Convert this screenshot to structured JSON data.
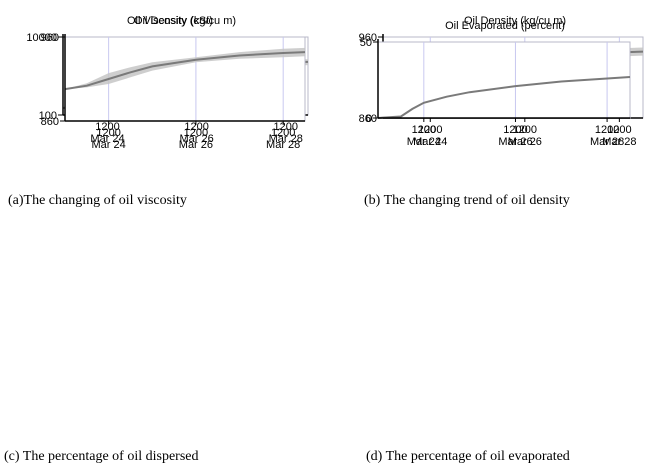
{
  "chart_data": [
    {
      "type": "area",
      "title": "Oil Viscosity (cSt)",
      "caption": "(a)The changing of oil viscosity",
      "y_scale": "log",
      "ylim": [
        100,
        10000
      ],
      "y_tick_labels": [
        "10000",
        "100"
      ],
      "x_ticks": [
        {
          "time": "1200",
          "date": "Mar 24"
        },
        {
          "time": "1200",
          "date": "Mar 26"
        },
        {
          "time": "1200",
          "date": "Mar 28"
        }
      ],
      "grid": "vertical",
      "series": [
        {
          "values": [
            {
              "x": "Mar 23 12:00",
              "y": 150,
              "lo": 150,
              "hi": 150
            },
            {
              "x": "Mar 24 00:00",
              "y": 200,
              "lo": 180,
              "hi": 230
            },
            {
              "x": "Mar 24 06:00",
              "y": 400,
              "lo": 300,
              "hi": 550
            },
            {
              "x": "Mar 24 12:00",
              "y": 700,
              "lo": 500,
              "hi": 950
            },
            {
              "x": "Mar 25 00:00",
              "y": 1000,
              "lo": 800,
              "hi": 1250
            },
            {
              "x": "Mar 25 12:00",
              "y": 1150,
              "lo": 1000,
              "hi": 1350
            },
            {
              "x": "Mar 26 12:00",
              "y": 1300,
              "lo": 1250,
              "hi": 1400
            },
            {
              "x": "Mar 27 12:00",
              "y": 1800,
              "lo": 1500,
              "hi": 2100
            },
            {
              "x": "Mar 28 12:00",
              "y": 2200,
              "lo": 1800,
              "hi": 2600
            },
            {
              "x": "Mar 29 00:00",
              "y": 2300,
              "lo": 1900,
              "hi": 2700
            }
          ]
        }
      ]
    },
    {
      "type": "area",
      "title": "Oil Density (kg/cu m)",
      "caption": "(b) The changing trend of oil density",
      "ylim": [
        860,
        960
      ],
      "y_tick_labels": [
        "960",
        "860"
      ],
      "x_ticks": [
        {
          "time": "1200",
          "date": "Mar 24"
        },
        {
          "time": "1200",
          "date": "Mar 26"
        },
        {
          "time": "1200",
          "date": "Mar 28"
        }
      ],
      "grid": "vertical",
      "series": [
        {
          "values": [
            {
              "x": "Mar 23 12:00",
              "y": 898,
              "lo": 898,
              "hi": 898
            },
            {
              "x": "Mar 24 00:00",
              "y": 902,
              "lo": 900,
              "hi": 905
            },
            {
              "x": "Mar 24 12:00",
              "y": 910,
              "lo": 904,
              "hi": 917
            },
            {
              "x": "Mar 25 00:00",
              "y": 918,
              "lo": 912,
              "hi": 924
            },
            {
              "x": "Mar 25 12:00",
              "y": 925,
              "lo": 920,
              "hi": 930
            },
            {
              "x": "Mar 26 12:00",
              "y": 933,
              "lo": 930,
              "hi": 936
            },
            {
              "x": "Mar 27 12:00",
              "y": 938,
              "lo": 934,
              "hi": 942
            },
            {
              "x": "Mar 28 12:00",
              "y": 941,
              "lo": 936,
              "hi": 946
            },
            {
              "x": "Mar 29 00:00",
              "y": 942,
              "lo": 937,
              "hi": 947
            }
          ]
        }
      ]
    },
    {
      "type": "area",
      "title": "Oil Density (kg/cu m)",
      "caption": "(c) The percentage of oil dispersed",
      "ylim": [
        860,
        960
      ],
      "y_tick_labels": [
        "960",
        "860"
      ],
      "x_ticks": [
        {
          "time": "1200",
          "date": "Mar 24"
        },
        {
          "time": "1200",
          "date": "Mar 26"
        },
        {
          "time": "1200",
          "date": "Mar 28"
        }
      ],
      "grid": "vertical",
      "series": [
        {
          "values": [
            {
              "x": "Mar 23 12:00",
              "y": 898,
              "lo": 898,
              "hi": 898
            },
            {
              "x": "Mar 24 00:00",
              "y": 902,
              "lo": 900,
              "hi": 905
            },
            {
              "x": "Mar 24 12:00",
              "y": 910,
              "lo": 904,
              "hi": 917
            },
            {
              "x": "Mar 25 00:00",
              "y": 918,
              "lo": 912,
              "hi": 924
            },
            {
              "x": "Mar 25 12:00",
              "y": 925,
              "lo": 920,
              "hi": 930
            },
            {
              "x": "Mar 26 12:00",
              "y": 933,
              "lo": 930,
              "hi": 936
            },
            {
              "x": "Mar 27 12:00",
              "y": 938,
              "lo": 934,
              "hi": 942
            },
            {
              "x": "Mar 28 12:00",
              "y": 941,
              "lo": 936,
              "hi": 946
            },
            {
              "x": "Mar 29 00:00",
              "y": 942,
              "lo": 937,
              "hi": 947
            }
          ]
        }
      ]
    },
    {
      "type": "line",
      "title": "Oil Evaporated (percent)",
      "caption": "(d) The percentage of oil evaporated",
      "ylim": [
        0,
        50
      ],
      "y_tick_labels": [
        "50",
        "0"
      ],
      "x_ticks": [
        {
          "time": "1200",
          "date": "Mar 24"
        },
        {
          "time": "1200",
          "date": "Mar 26"
        },
        {
          "time": "1200",
          "date": "Mar 28"
        }
      ],
      "grid": "vertical",
      "series": [
        {
          "values": [
            {
              "x": "Mar 23 12:00",
              "y": 0
            },
            {
              "x": "Mar 24 00:00",
              "y": 1
            },
            {
              "x": "Mar 24 06:00",
              "y": 6
            },
            {
              "x": "Mar 24 12:00",
              "y": 10
            },
            {
              "x": "Mar 25 00:00",
              "y": 14
            },
            {
              "x": "Mar 25 12:00",
              "y": 17
            },
            {
              "x": "Mar 26 12:00",
              "y": 21
            },
            {
              "x": "Mar 27 12:00",
              "y": 24
            },
            {
              "x": "Mar 28 12:00",
              "y": 26
            },
            {
              "x": "Mar 29 00:00",
              "y": 27
            }
          ]
        }
      ]
    }
  ]
}
